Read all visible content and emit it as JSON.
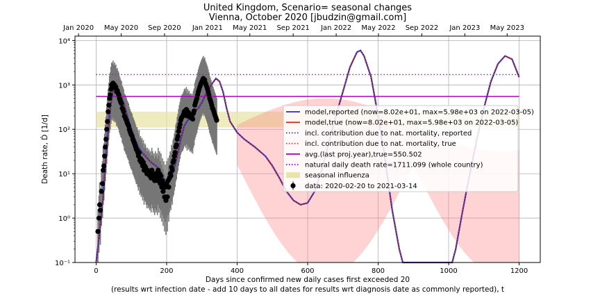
{
  "chart_data": {
    "type": "line",
    "title": "United Kingdom, Scenario= seasonal changes",
    "subtitle": "Vienna, October 2020 [jbudzin@gmail.com]",
    "xlabel": "Days since confirmed new daily cases first exceeded 20",
    "xlabel2": "(results wrt infection date - add 10 days to all dates for results wrt diagnosis date as commonly reported), t",
    "ylabel": "Death rate, Ḋ [1/d]",
    "xlim": [
      -60,
      1260
    ],
    "ylim_log10": [
      -1,
      4.1
    ],
    "y_scale": "log",
    "grid": true,
    "x_ticks": [
      0,
      200,
      400,
      600,
      800,
      1000,
      1200
    ],
    "y_tick_labels": [
      "10⁻¹",
      "10⁰",
      "10¹",
      "10²",
      "10³",
      "10⁴"
    ],
    "top_axis": {
      "ticks": [
        {
          "label": "Jan 2020",
          "x": -50
        },
        {
          "label": "May 2020",
          "x": 71
        },
        {
          "label": "Sep 2020",
          "x": 194
        },
        {
          "label": "Jan 2021",
          "x": 316
        },
        {
          "label": "May 2021",
          "x": 436
        },
        {
          "label": "Sep 2021",
          "x": 559
        },
        {
          "label": "Jan 2022",
          "x": 681
        },
        {
          "label": "May 2022",
          "x": 801
        },
        {
          "label": "Sep 2022",
          "x": 924
        },
        {
          "label": "Jan 2023",
          "x": 1046
        },
        {
          "label": "May 2023",
          "x": 1166
        }
      ]
    },
    "horizontal_lines": {
      "avg_last_year": 550.502,
      "natural_death_rate": 1711.099
    },
    "seasonal_influenza_band": [
      110,
      250
    ],
    "series": [
      {
        "name": "model,reported (now=8.02e+01, max=5.98e+03 on 2022-03-05)",
        "color": "#2b2bb0",
        "style": "solid"
      },
      {
        "name": "model,true (now=8.02e+01, max=5.98e+03 on 2022-03-05)",
        "color": "#e0302a",
        "style": "solid"
      },
      {
        "name": "incl. contribution due to nat. mortality, reported",
        "color": "#2b2bb0",
        "style": "dotted"
      },
      {
        "name": "incl. contribution due to nat. mortality, true",
        "color": "#e0302a",
        "style": "dotted"
      },
      {
        "name": "avg.(last proj.year),true=550.502",
        "color": "#b000c0",
        "style": "solid"
      },
      {
        "name": "natural daily death rate=1711.099 (whole country)",
        "color": "#b000c0",
        "style": "dotted"
      },
      {
        "name": "seasonal influenza",
        "color": "#e8e4a8",
        "style": "band"
      },
      {
        "name": "data: 2020-02-20 to 2021-03-14",
        "color": "#000000",
        "style": "points"
      }
    ],
    "model_curve": [
      [
        0,
        0.05
      ],
      [
        10,
        0.5
      ],
      [
        20,
        3
      ],
      [
        30,
        40
      ],
      [
        40,
        300
      ],
      [
        50,
        900
      ],
      [
        60,
        850
      ],
      [
        70,
        600
      ],
      [
        80,
        350
      ],
      [
        90,
        180
      ],
      [
        100,
        100
      ],
      [
        110,
        60
      ],
      [
        120,
        40
      ],
      [
        130,
        30
      ],
      [
        140,
        25
      ],
      [
        150,
        20
      ],
      [
        160,
        17
      ],
      [
        170,
        15
      ],
      [
        180,
        12
      ],
      [
        190,
        8
      ],
      [
        200,
        6
      ],
      [
        210,
        7
      ],
      [
        220,
        12
      ],
      [
        230,
        25
      ],
      [
        240,
        60
      ],
      [
        250,
        120
      ],
      [
        260,
        160
      ],
      [
        270,
        200
      ],
      [
        280,
        260
      ],
      [
        290,
        300
      ],
      [
        300,
        400
      ],
      [
        310,
        600
      ],
      [
        320,
        800
      ],
      [
        330,
        1100
      ],
      [
        340,
        1400
      ],
      [
        350,
        1200
      ],
      [
        360,
        700
      ],
      [
        370,
        300
      ],
      [
        380,
        150
      ],
      [
        400,
        85
      ],
      [
        420,
        60
      ],
      [
        450,
        40
      ],
      [
        480,
        25
      ],
      [
        500,
        15
      ],
      [
        520,
        8
      ],
      [
        540,
        4
      ],
      [
        560,
        2.5
      ],
      [
        580,
        2
      ],
      [
        600,
        2.2
      ],
      [
        620,
        4
      ],
      [
        640,
        12
      ],
      [
        660,
        50
      ],
      [
        680,
        200
      ],
      [
        700,
        700
      ],
      [
        720,
        2500
      ],
      [
        740,
        5500
      ],
      [
        750,
        5980
      ],
      [
        760,
        4500
      ],
      [
        780,
        1500
      ],
      [
        800,
        200
      ],
      [
        820,
        20
      ],
      [
        840,
        1.5
      ],
      [
        860,
        0.2
      ],
      [
        870,
        0.05
      ],
      [
        1010,
        0.05
      ],
      [
        1020,
        0.2
      ],
      [
        1040,
        1.5
      ],
      [
        1060,
        10
      ],
      [
        1080,
        60
      ],
      [
        1100,
        300
      ],
      [
        1120,
        1200
      ],
      [
        1140,
        3000
      ],
      [
        1160,
        4500
      ],
      [
        1180,
        3800
      ],
      [
        1200,
        1500
      ]
    ],
    "data_points": [
      [
        5,
        0.5
      ],
      [
        8,
        1
      ],
      [
        10,
        2
      ],
      [
        12,
        1.5
      ],
      [
        15,
        4
      ],
      [
        18,
        6
      ],
      [
        20,
        12
      ],
      [
        22,
        15
      ],
      [
        24,
        25
      ],
      [
        26,
        40
      ],
      [
        28,
        60
      ],
      [
        30,
        100
      ],
      [
        32,
        150
      ],
      [
        34,
        250
      ],
      [
        36,
        350
      ],
      [
        38,
        500
      ],
      [
        40,
        600
      ],
      [
        42,
        800
      ],
      [
        44,
        1000
      ],
      [
        46,
        950
      ],
      [
        48,
        1100
      ],
      [
        50,
        900
      ],
      [
        52,
        1000
      ],
      [
        54,
        850
      ],
      [
        56,
        900
      ],
      [
        58,
        700
      ],
      [
        60,
        750
      ],
      [
        62,
        650
      ],
      [
        64,
        600
      ],
      [
        66,
        500
      ],
      [
        68,
        450
      ],
      [
        70,
        400
      ],
      [
        72,
        380
      ],
      [
        74,
        300
      ],
      [
        76,
        280
      ],
      [
        78,
        250
      ],
      [
        80,
        200
      ],
      [
        82,
        190
      ],
      [
        84,
        170
      ],
      [
        86,
        160
      ],
      [
        88,
        140
      ],
      [
        90,
        130
      ],
      [
        92,
        120
      ],
      [
        94,
        100
      ],
      [
        96,
        90
      ],
      [
        98,
        80
      ],
      [
        100,
        75
      ],
      [
        102,
        70
      ],
      [
        104,
        60
      ],
      [
        106,
        55
      ],
      [
        108,
        50
      ],
      [
        110,
        45
      ],
      [
        112,
        40
      ],
      [
        114,
        35
      ],
      [
        116,
        35
      ],
      [
        118,
        30
      ],
      [
        120,
        25
      ],
      [
        122,
        30
      ],
      [
        124,
        20
      ],
      [
        126,
        22
      ],
      [
        128,
        18
      ],
      [
        130,
        20
      ],
      [
        132,
        15
      ],
      [
        134,
        18
      ],
      [
        136,
        12
      ],
      [
        138,
        15
      ],
      [
        140,
        14
      ],
      [
        142,
        12
      ],
      [
        144,
        10
      ],
      [
        146,
        12
      ],
      [
        148,
        10
      ],
      [
        150,
        11
      ],
      [
        152,
        9
      ],
      [
        154,
        10
      ],
      [
        156,
        8
      ],
      [
        158,
        12
      ],
      [
        160,
        10
      ],
      [
        162,
        8
      ],
      [
        164,
        9
      ],
      [
        166,
        7
      ],
      [
        168,
        10
      ],
      [
        170,
        8
      ],
      [
        172,
        9
      ],
      [
        174,
        7
      ],
      [
        176,
        12
      ],
      [
        178,
        8
      ],
      [
        180,
        10
      ],
      [
        182,
        6
      ],
      [
        184,
        9
      ],
      [
        186,
        5
      ],
      [
        188,
        7
      ],
      [
        190,
        4
      ],
      [
        192,
        6
      ],
      [
        194,
        3
      ],
      [
        196,
        5
      ],
      [
        198,
        2.5
      ],
      [
        200,
        6
      ],
      [
        202,
        3
      ],
      [
        204,
        7
      ],
      [
        206,
        5
      ],
      [
        208,
        8
      ],
      [
        210,
        10
      ],
      [
        212,
        9
      ],
      [
        214,
        14
      ],
      [
        216,
        12
      ],
      [
        218,
        18
      ],
      [
        220,
        20
      ],
      [
        222,
        25
      ],
      [
        224,
        30
      ],
      [
        226,
        40
      ],
      [
        228,
        45
      ],
      [
        230,
        60
      ],
      [
        232,
        70
      ],
      [
        234,
        90
      ],
      [
        236,
        110
      ],
      [
        238,
        130
      ],
      [
        240,
        160
      ],
      [
        242,
        180
      ],
      [
        244,
        190
      ],
      [
        246,
        200
      ],
      [
        248,
        220
      ],
      [
        250,
        250
      ],
      [
        252,
        260
      ],
      [
        254,
        230
      ],
      [
        256,
        280
      ],
      [
        258,
        200
      ],
      [
        260,
        250
      ],
      [
        262,
        210
      ],
      [
        264,
        230
      ],
      [
        266,
        190
      ],
      [
        268,
        200
      ],
      [
        270,
        180
      ],
      [
        272,
        200
      ],
      [
        274,
        170
      ],
      [
        276,
        230
      ],
      [
        278,
        260
      ],
      [
        280,
        350
      ],
      [
        282,
        400
      ],
      [
        284,
        450
      ],
      [
        286,
        500
      ],
      [
        288,
        600
      ],
      [
        290,
        700
      ],
      [
        292,
        800
      ],
      [
        294,
        900
      ],
      [
        296,
        1000
      ],
      [
        298,
        1100
      ],
      [
        300,
        1200
      ],
      [
        302,
        1300
      ],
      [
        304,
        1400
      ],
      [
        306,
        1200
      ],
      [
        308,
        1300
      ],
      [
        310,
        1100
      ],
      [
        312,
        1000
      ],
      [
        314,
        900
      ],
      [
        316,
        800
      ],
      [
        318,
        700
      ],
      [
        320,
        600
      ],
      [
        322,
        500
      ],
      [
        324,
        450
      ],
      [
        326,
        400
      ],
      [
        328,
        350
      ],
      [
        330,
        300
      ],
      [
        332,
        280
      ],
      [
        334,
        250
      ],
      [
        336,
        220
      ],
      [
        338,
        200
      ],
      [
        340,
        180
      ],
      [
        342,
        160
      ]
    ]
  }
}
